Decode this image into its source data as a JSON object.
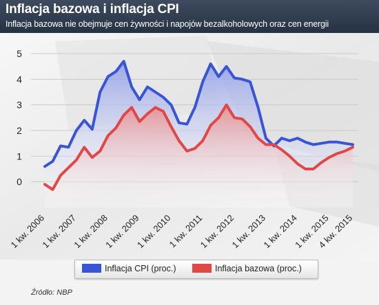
{
  "header": {
    "title": "Inflacja bazowa i inflacja CPI",
    "subtitle": "Inflacja bazowa nie obejmuje cen żywności i napojów bezalkoholowych oraz cen energii"
  },
  "source": "Źródło: NBP",
  "colors": {
    "cpi": "#3a55d4",
    "core": "#e04848",
    "cpi_fill": "#aab4ee",
    "core_fill": "#f2bcbc"
  },
  "chart_data": {
    "type": "area",
    "title": "Inflacja bazowa i inflacja CPI",
    "subtitle": "Inflacja bazowa nie obejmuje cen żywności i napojów bezalkoholowych oraz cen energii",
    "ylim": [
      -1,
      5
    ],
    "yticks": [
      0,
      1,
      2,
      3,
      4,
      5
    ],
    "grid": true,
    "legend_placement": "bottom",
    "x": [
      0,
      1,
      2,
      3,
      4,
      5,
      6,
      7,
      8,
      9,
      10,
      11,
      12,
      13,
      14,
      15,
      16,
      17,
      18,
      19,
      20,
      21,
      22,
      23,
      24,
      25,
      26,
      27,
      28,
      29,
      30,
      31,
      32,
      33,
      34,
      35,
      36,
      37,
      38,
      39
    ],
    "xtick_labels": [
      {
        "x": 0,
        "label": "1 kw. 2006"
      },
      {
        "x": 4,
        "label": "1 kw. 2007"
      },
      {
        "x": 8,
        "label": "1 kw. 2008"
      },
      {
        "x": 12,
        "label": "1 kw. 2009"
      },
      {
        "x": 16,
        "label": "1 kw. 2010"
      },
      {
        "x": 20,
        "label": "1 kw. 2011"
      },
      {
        "x": 24,
        "label": "1 kw. 2012"
      },
      {
        "x": 28,
        "label": "1 kw. 2013"
      },
      {
        "x": 32,
        "label": "1 kw. 2014"
      },
      {
        "x": 36,
        "label": "1 kw. 2015"
      },
      {
        "x": 39,
        "label": "4 kw. 2015"
      }
    ],
    "series": [
      {
        "name": "Inflacja CPI (proc.)",
        "values": [
          0.6,
          0.8,
          1.4,
          1.35,
          2.0,
          2.4,
          2.05,
          3.5,
          4.1,
          4.3,
          4.7,
          3.7,
          3.2,
          3.7,
          3.5,
          3.3,
          3.0,
          2.3,
          2.25,
          2.9,
          3.9,
          4.6,
          4.1,
          4.5,
          4.05,
          4.0,
          3.9,
          2.9,
          1.7,
          1.4,
          1.7,
          1.6,
          1.7,
          1.55,
          1.45,
          1.5,
          1.55,
          1.55,
          1.5,
          1.45
        ]
      },
      {
        "name": "Inflacja bazowa (proc.)",
        "values": [
          -0.1,
          -0.3,
          0.25,
          0.55,
          0.85,
          1.35,
          0.95,
          1.2,
          1.8,
          2.1,
          2.6,
          2.9,
          2.35,
          2.65,
          2.9,
          2.75,
          2.15,
          1.6,
          1.2,
          1.3,
          1.6,
          2.2,
          2.5,
          3.0,
          2.5,
          2.45,
          2.15,
          1.7,
          1.45,
          1.45,
          1.25,
          1.0,
          0.7,
          0.5,
          0.5,
          0.75,
          0.95,
          1.1,
          1.2,
          1.35
        ]
      }
    ]
  },
  "legend": {
    "items": [
      "Inflacja CPI (proc.)",
      "Inflacja bazowa (proc.)"
    ]
  }
}
